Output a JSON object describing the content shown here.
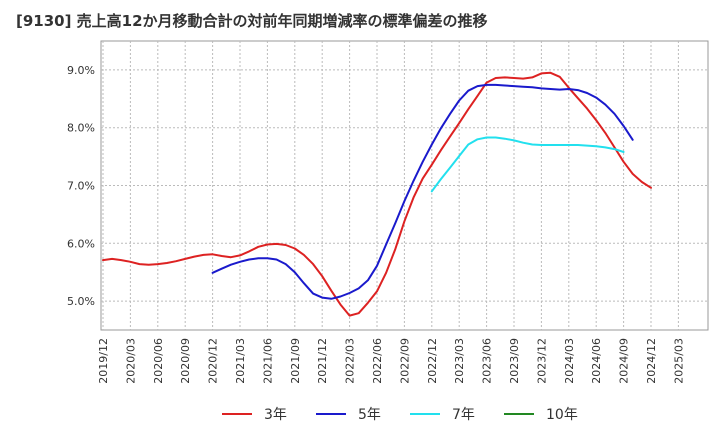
{
  "chart_data": {
    "type": "line",
    "title": "[9130]  売上高12か月移動合計の対前年同期増減率の標準偏差の推移",
    "xlabel": "",
    "ylabel": "",
    "ylim": [
      4.5,
      9.5
    ],
    "yticks": [
      5.0,
      6.0,
      7.0,
      8.0,
      9.0
    ],
    "ytick_labels": [
      "5.0%",
      "6.0%",
      "7.0%",
      "8.0%",
      "9.0%"
    ],
    "x_tick_labels": [
      "2019/12",
      "2020/03",
      "2020/06",
      "2020/09",
      "2020/12",
      "2021/03",
      "2021/06",
      "2021/09",
      "2021/12",
      "2022/03",
      "2022/06",
      "2022/09",
      "2022/12",
      "2023/03",
      "2023/06",
      "2023/09",
      "2023/12",
      "2024/03",
      "2024/06",
      "2024/09",
      "2024/12",
      "2025/03"
    ],
    "grid": true,
    "legend_position": "bottom",
    "series": [
      {
        "name": "3年",
        "color": "#dd2222",
        "start_index": 0,
        "values": [
          5.71,
          5.73,
          5.71,
          5.68,
          5.64,
          5.63,
          5.64,
          5.66,
          5.69,
          5.73,
          5.77,
          5.8,
          5.81,
          5.78,
          5.76,
          5.79,
          5.86,
          5.94,
          5.98,
          5.99,
          5.97,
          5.91,
          5.8,
          5.64,
          5.43,
          5.18,
          4.94,
          4.75,
          4.79,
          4.97,
          5.17,
          5.49,
          5.9,
          6.38,
          6.79,
          7.12,
          7.36,
          7.61,
          7.85,
          8.08,
          8.32,
          8.55,
          8.78,
          8.86,
          8.87,
          8.86,
          8.85,
          8.87,
          8.94,
          8.95,
          8.88,
          8.69,
          8.51,
          8.33,
          8.13,
          7.91,
          7.66,
          7.41,
          7.2,
          7.06,
          6.96
        ]
      },
      {
        "name": "5年",
        "color": "#1a1acc",
        "start_index": 12,
        "values": [
          5.49,
          5.56,
          5.63,
          5.68,
          5.72,
          5.74,
          5.74,
          5.72,
          5.64,
          5.5,
          5.31,
          5.13,
          5.06,
          5.04,
          5.08,
          5.14,
          5.22,
          5.36,
          5.61,
          5.98,
          6.35,
          6.73,
          7.08,
          7.41,
          7.71,
          7.99,
          8.24,
          8.47,
          8.64,
          8.72,
          8.74,
          8.74,
          8.73,
          8.72,
          8.71,
          8.7,
          8.68,
          8.67,
          8.66,
          8.67,
          8.65,
          8.6,
          8.52,
          8.4,
          8.24,
          8.03,
          7.79
        ]
      },
      {
        "name": "7年",
        "color": "#22e0ee",
        "start_index": 36,
        "values": [
          6.9,
          7.11,
          7.31,
          7.51,
          7.71,
          7.8,
          7.83,
          7.83,
          7.81,
          7.78,
          7.74,
          7.71,
          7.7,
          7.7,
          7.7,
          7.7,
          7.7,
          7.69,
          7.68,
          7.66,
          7.63,
          7.58
        ]
      },
      {
        "name": "10年",
        "color": "#228822",
        "start_index": 0,
        "values": []
      }
    ]
  }
}
